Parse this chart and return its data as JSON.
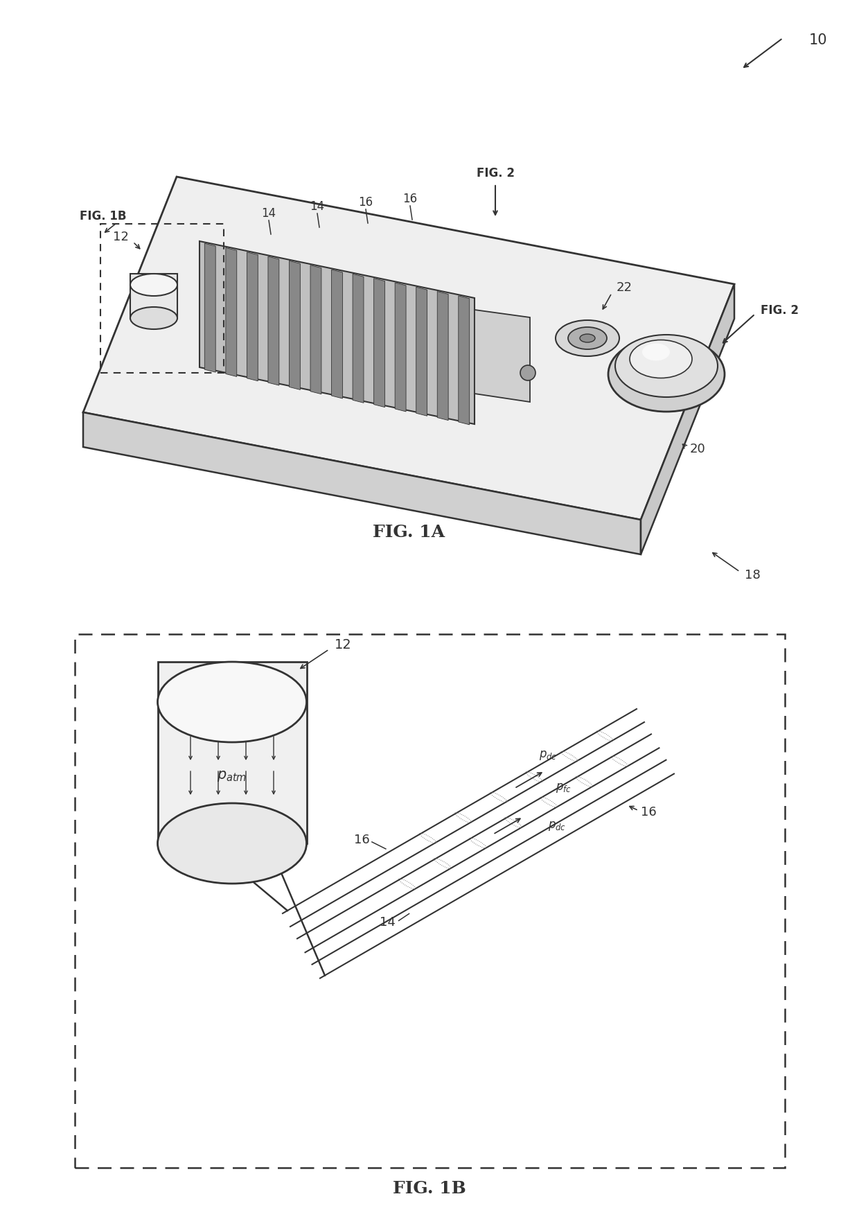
{
  "fig_width": 12.4,
  "fig_height": 17.46,
  "bg_color": "#ffffff",
  "line_color": "#333333",
  "fig1a_caption": "FIG. 1A",
  "fig1b_caption": "FIG. 1B",
  "label_10": "10",
  "label_12": "12",
  "label_14a": "14",
  "label_14b": "14",
  "label_16a": "16",
  "label_16b": "16",
  "label_18": "18",
  "label_20": "20",
  "label_22": "22",
  "label_fig1b_ref": "FIG. 1B",
  "label_fig2a": "FIG. 2",
  "label_fig2b": "FIG. 2",
  "label_patm": "p_atm",
  "label_pdc": "p_dc",
  "label_pfc": "p_fc"
}
